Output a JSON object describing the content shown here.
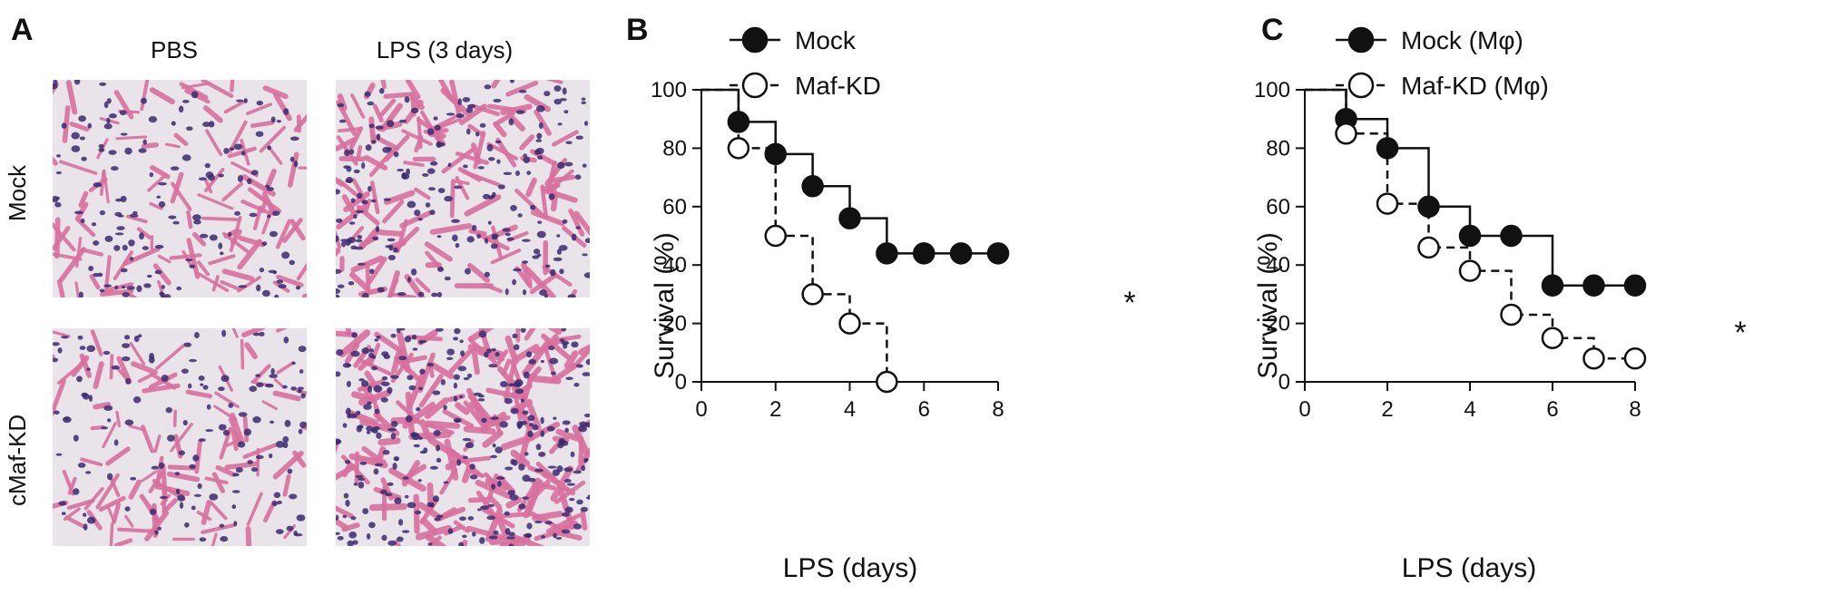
{
  "panels": {
    "a": "A",
    "b": "B",
    "c": "C"
  },
  "histology": {
    "col_headers": [
      "PBS",
      "LPS (3 days)"
    ],
    "row_headers": [
      "Mock",
      "cMaf-KD"
    ],
    "colors": {
      "background": "#e9e4ea",
      "tissue": "#d9709e",
      "nuclei": "#3b2a6e"
    }
  },
  "chart_data": [
    {
      "type": "line",
      "step": true,
      "title": "",
      "xlabel": "LPS (days)",
      "ylabel": "Survival (%)",
      "xlim": [
        0,
        8
      ],
      "ylim": [
        0,
        100
      ],
      "xticks": [
        0,
        2,
        4,
        6,
        8
      ],
      "yticks": [
        0,
        20,
        40,
        60,
        80,
        100
      ],
      "grid": false,
      "legend_position": "top-center",
      "annotation": "*",
      "series": [
        {
          "name": "Mock",
          "marker": "filled-circle",
          "line": "solid",
          "x": [
            0,
            1,
            2,
            3,
            4,
            5,
            6,
            7,
            8
          ],
          "y": [
            100,
            89,
            78,
            67,
            56,
            44,
            44,
            44,
            44
          ],
          "markers_x": [
            1,
            2,
            3,
            4,
            5,
            6,
            7,
            8
          ]
        },
        {
          "name": "Maf-KD",
          "marker": "open-circle",
          "line": "dashed",
          "x": [
            0,
            1,
            2,
            3,
            4,
            5
          ],
          "y": [
            100,
            80,
            50,
            30,
            20,
            0
          ],
          "markers_x": [
            1,
            2,
            3,
            4,
            5
          ]
        }
      ]
    },
    {
      "type": "line",
      "step": true,
      "title": "",
      "xlabel": "LPS (days)",
      "ylabel": "Survival (%)",
      "xlim": [
        0,
        8
      ],
      "ylim": [
        0,
        100
      ],
      "xticks": [
        0,
        2,
        4,
        6,
        8
      ],
      "yticks": [
        0,
        20,
        40,
        60,
        80,
        100
      ],
      "grid": false,
      "legend_position": "top-right",
      "annotation": "*",
      "series": [
        {
          "name": "Mock (Mφ)",
          "marker": "filled-circle",
          "line": "solid",
          "x": [
            0,
            1,
            2,
            3,
            4,
            5,
            6,
            7,
            8
          ],
          "y": [
            100,
            90,
            80,
            60,
            50,
            50,
            33,
            33,
            33
          ],
          "markers_x": [
            1,
            2,
            3,
            4,
            5,
            6,
            7,
            8
          ]
        },
        {
          "name": "Maf-KD (Mφ)",
          "marker": "open-circle",
          "line": "dashed",
          "x": [
            0,
            1,
            2,
            3,
            4,
            5,
            6,
            7,
            8
          ],
          "y": [
            100,
            85,
            61,
            46,
            38,
            23,
            15,
            8,
            8
          ],
          "markers_x": [
            1,
            2,
            3,
            4,
            5,
            6,
            7,
            8
          ]
        }
      ]
    }
  ]
}
